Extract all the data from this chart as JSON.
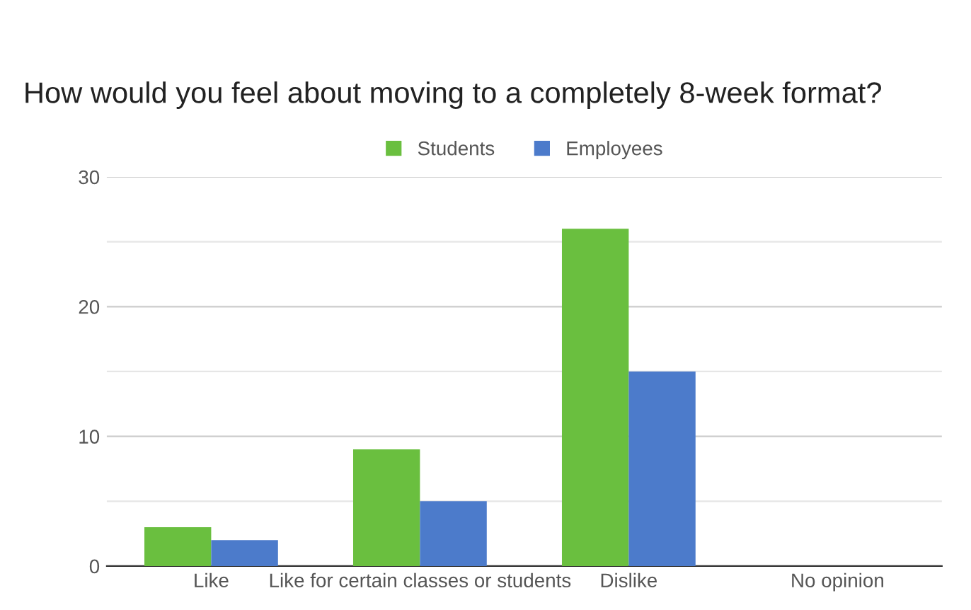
{
  "chart_data": {
    "type": "bar",
    "title": "How would you feel about moving to a completely 8-week format?",
    "categories": [
      "Like",
      "Like for certain classes or students",
      "Dislike",
      "No opinion"
    ],
    "series": [
      {
        "name": "Students",
        "color": "#6abf3f",
        "values": [
          3,
          9,
          26,
          0
        ]
      },
      {
        "name": "Employees",
        "color": "#4c7bcb",
        "values": [
          2,
          5,
          15,
          0
        ]
      }
    ],
    "ylim": [
      0,
      30
    ],
    "yticks": [
      0,
      {
        "value": 5,
        "label": null
      },
      10,
      {
        "value": 15,
        "label": null
      },
      20,
      {
        "value": 25,
        "label": null
      },
      30
    ],
    "grid": "y",
    "legend": "top"
  }
}
